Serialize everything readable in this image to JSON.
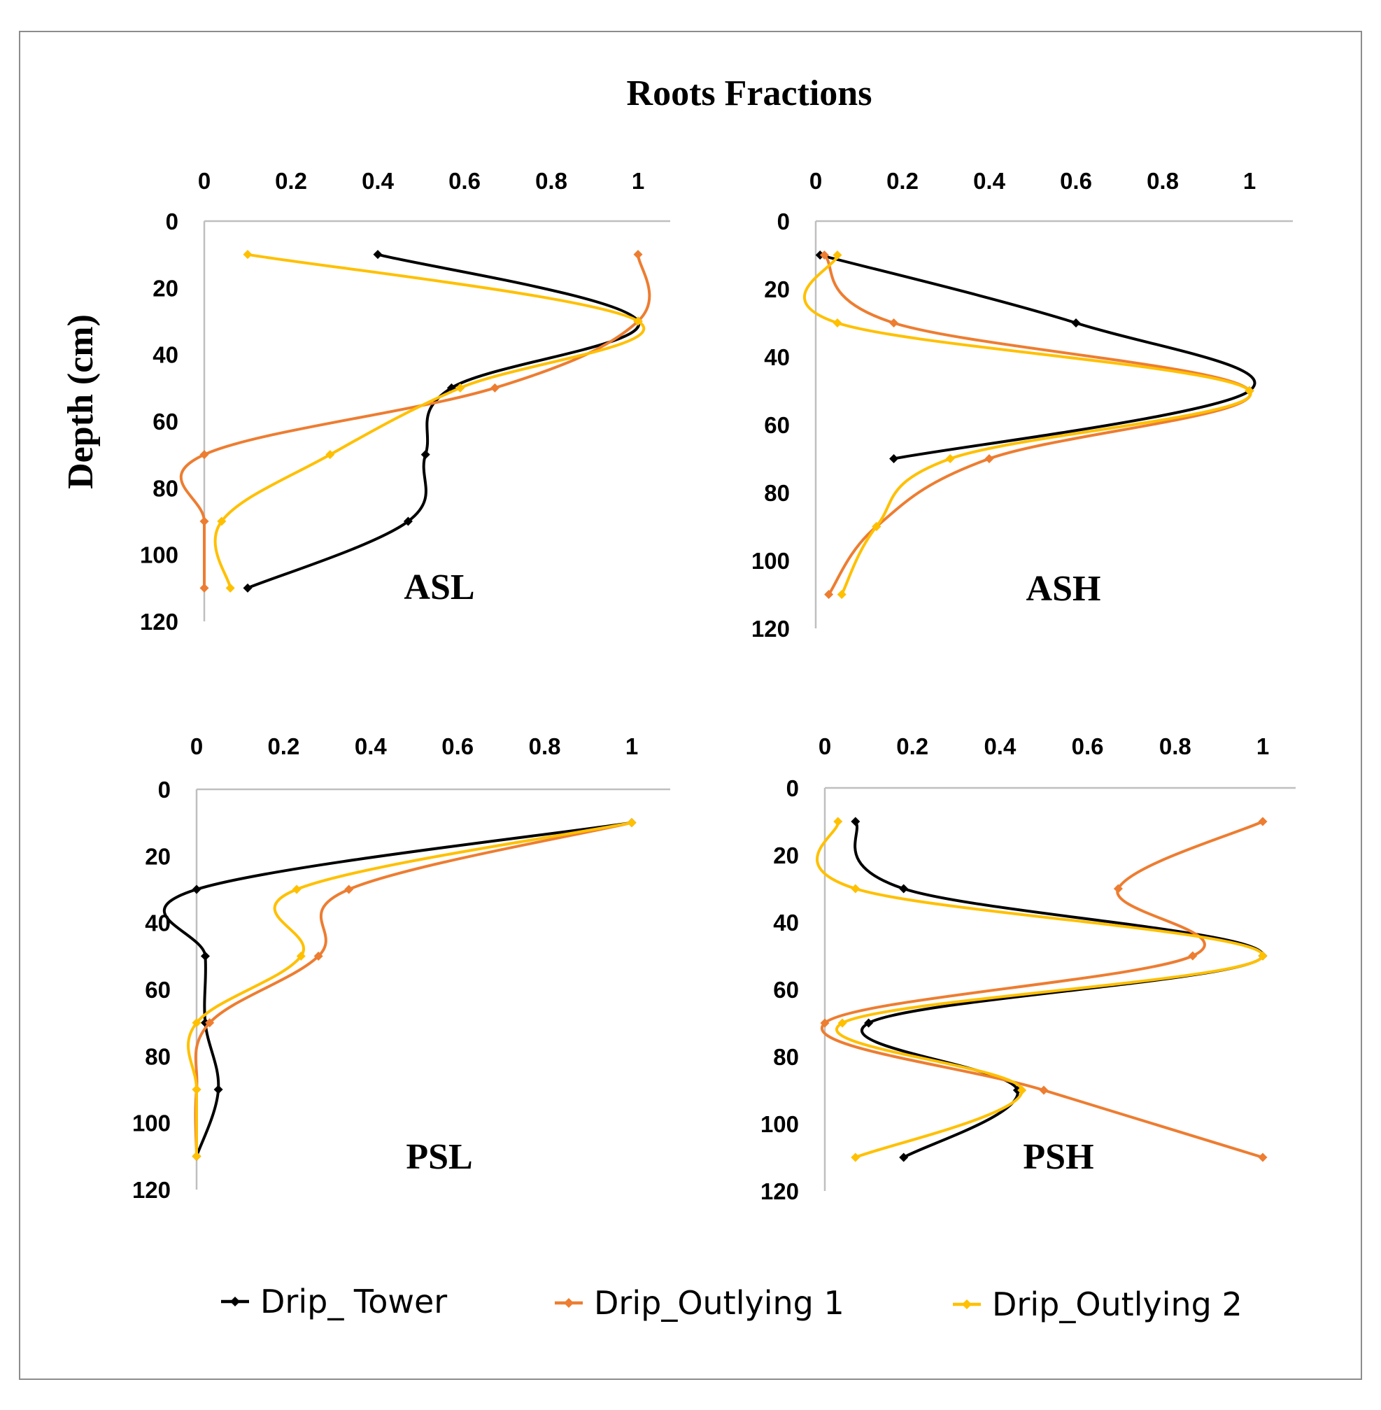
{
  "chart_data": {
    "type": "line",
    "title": "Roots  Fractions",
    "ylabel": "Depth  (cm)",
    "x_ticks": [
      "0",
      "0.2",
      "0.4",
      "0.6",
      "0.8",
      "1"
    ],
    "y_ticks": [
      "0",
      "20",
      "40",
      "60",
      "80",
      "100",
      "120"
    ],
    "xlim": [
      0,
      1.07
    ],
    "ylim": [
      0,
      120
    ],
    "orientation": "x axis on top, depth increasing downward",
    "grid": false,
    "legend_position": "bottom",
    "series_styles": [
      {
        "name": "Drip_ Tower",
        "color": "#000000"
      },
      {
        "name": "Drip_Outlying 1",
        "color": "#ED7D31"
      },
      {
        "name": "Drip_Outlying 2",
        "color": "#FFC000"
      }
    ],
    "panels": [
      {
        "label": "ASL",
        "series": [
          {
            "name": "Drip_ Tower",
            "points": [
              [
                0.4,
                10
              ],
              [
                1.0,
                30
              ],
              [
                0.57,
                50
              ],
              [
                0.51,
                70
              ],
              [
                0.47,
                90
              ],
              [
                0.1,
                110
              ]
            ]
          },
          {
            "name": "Drip_Outlying 1",
            "points": [
              [
                1.0,
                10
              ],
              [
                1.0,
                30
              ],
              [
                0.67,
                50
              ],
              [
                0.0,
                70
              ],
              [
                0.0,
                90
              ],
              [
                0.0,
                110
              ]
            ]
          },
          {
            "name": "Drip_Outlying 2",
            "points": [
              [
                0.1,
                10
              ],
              [
                1.0,
                30
              ],
              [
                0.59,
                50
              ],
              [
                0.29,
                70
              ],
              [
                0.04,
                90
              ],
              [
                0.06,
                110
              ]
            ]
          }
        ]
      },
      {
        "label": "ASH",
        "series": [
          {
            "name": "Drip_ Tower",
            "points": [
              [
                0.01,
                10
              ],
              [
                0.6,
                30
              ],
              [
                1.0,
                50
              ],
              [
                0.18,
                70
              ]
            ]
          },
          {
            "name": "Drip_Outlying 1",
            "points": [
              [
                0.02,
                10
              ],
              [
                0.18,
                30
              ],
              [
                1.0,
                50
              ],
              [
                0.4,
                70
              ],
              [
                0.14,
                90
              ],
              [
                0.03,
                110
              ]
            ]
          },
          {
            "name": "Drip_Outlying 2",
            "points": [
              [
                0.05,
                10
              ],
              [
                0.05,
                30
              ],
              [
                1.0,
                50
              ],
              [
                0.31,
                70
              ],
              [
                0.14,
                90
              ],
              [
                0.06,
                110
              ]
            ]
          }
        ]
      },
      {
        "label": "PSL",
        "series": [
          {
            "name": "Drip_ Tower",
            "points": [
              [
                1.0,
                10
              ],
              [
                0.0,
                30
              ],
              [
                0.02,
                50
              ],
              [
                0.02,
                70
              ],
              [
                0.05,
                90
              ],
              [
                0.0,
                110
              ]
            ]
          },
          {
            "name": "Drip_Outlying 1",
            "points": [
              [
                1.0,
                10
              ],
              [
                0.35,
                30
              ],
              [
                0.28,
                50
              ],
              [
                0.03,
                70
              ],
              [
                0.0,
                90
              ],
              [
                0.0,
                110
              ]
            ]
          },
          {
            "name": "Drip_Outlying 2",
            "points": [
              [
                1.0,
                10
              ],
              [
                0.23,
                30
              ],
              [
                0.24,
                50
              ],
              [
                0.0,
                70
              ],
              [
                0.0,
                90
              ],
              [
                0.0,
                110
              ]
            ]
          }
        ]
      },
      {
        "label": "PSH",
        "series": [
          {
            "name": "Drip_ Tower",
            "points": [
              [
                0.07,
                10
              ],
              [
                0.18,
                30
              ],
              [
                1.0,
                50
              ],
              [
                0.1,
                70
              ],
              [
                0.44,
                90
              ],
              [
                0.18,
                110
              ]
            ]
          },
          {
            "name": "Drip_Outlying 1",
            "points": [
              [
                1.0,
                10
              ],
              [
                0.67,
                30
              ],
              [
                0.84,
                50
              ],
              [
                0.0,
                70
              ],
              [
                0.5,
                90
              ],
              [
                1.0,
                110
              ]
            ]
          },
          {
            "name": "Drip_Outlying 2",
            "points": [
              [
                0.03,
                10
              ],
              [
                0.07,
                30
              ],
              [
                1.0,
                50
              ],
              [
                0.04,
                70
              ],
              [
                0.45,
                90
              ],
              [
                0.07,
                110
              ]
            ]
          }
        ]
      }
    ]
  }
}
